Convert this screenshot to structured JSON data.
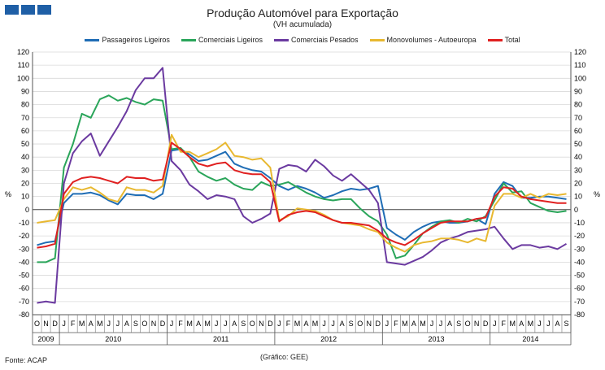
{
  "title": "Produção Automóvel para Exportação",
  "subtitle": "(VH acumulada)",
  "source": "Fonte: ACAP",
  "credit": "(Gráfico: GEE)",
  "chart_data": {
    "type": "line",
    "title": "Produção Automóvel para Exportação",
    "subtitle": "(VH acumulada)",
    "ylabel": "%",
    "ylabel_right": "%",
    "ylim": [
      -80,
      120
    ],
    "ytick_step": 10,
    "grid": "horizontal",
    "legend": "top",
    "categories": [
      "O",
      "N",
      "D",
      "J",
      "F",
      "M",
      "A",
      "M",
      "J",
      "J",
      "A",
      "S",
      "O",
      "N",
      "D",
      "J",
      "F",
      "M",
      "A",
      "M",
      "J",
      "J",
      "A",
      "S",
      "O",
      "N",
      "D",
      "J",
      "F",
      "M",
      "A",
      "M",
      "J",
      "J",
      "A",
      "S",
      "O",
      "N",
      "D",
      "J",
      "F",
      "M",
      "A",
      "M",
      "J",
      "J",
      "A",
      "S",
      "O",
      "N",
      "D",
      "J",
      "F",
      "M",
      "A",
      "M",
      "J",
      "J",
      "A",
      "S"
    ],
    "years": [
      {
        "label": "2009",
        "start": 0,
        "count": 3
      },
      {
        "label": "2010",
        "start": 3,
        "count": 12
      },
      {
        "label": "2011",
        "start": 15,
        "count": 12
      },
      {
        "label": "2012",
        "start": 27,
        "count": 12
      },
      {
        "label": "2013",
        "start": 39,
        "count": 12
      },
      {
        "label": "2014",
        "start": 51,
        "count": 9
      }
    ],
    "series": [
      {
        "name": "Passageiros Ligeiros",
        "color": "#1f6db5",
        "values": [
          -27,
          -25,
          -24,
          5,
          12,
          12,
          13,
          11,
          7,
          4,
          12,
          11,
          11,
          8,
          12,
          45,
          46,
          42,
          37,
          38,
          41,
          44,
          35,
          32,
          30,
          29,
          24,
          18,
          15,
          18,
          16,
          13,
          9,
          11,
          14,
          16,
          15,
          16,
          18,
          -14,
          -19,
          -23,
          -17,
          -13,
          -10,
          -9,
          -10,
          -10,
          -9,
          -7,
          -11,
          12,
          21,
          18,
          9,
          9,
          10,
          10,
          9,
          8
        ]
      },
      {
        "name": "Comerciais Ligeiros",
        "color": "#2aa55a",
        "values": [
          -40,
          -40,
          -37,
          32,
          50,
          73,
          70,
          84,
          87,
          83,
          85,
          82,
          80,
          84,
          83,
          46,
          47,
          40,
          29,
          25,
          22,
          24,
          19,
          16,
          15,
          21,
          18,
          19,
          21,
          17,
          13,
          10,
          8,
          7,
          8,
          8,
          1,
          -5,
          -9,
          -19,
          -37,
          -35,
          -27,
          -18,
          -13,
          -9,
          -8,
          -10,
          -7,
          -9,
          -5,
          7,
          20,
          13,
          14,
          5,
          2,
          -1,
          -2,
          -1
        ]
      },
      {
        "name": "Comerciais Pesados",
        "color": "#6b3aa0",
        "values": [
          -71,
          -70,
          -71,
          20,
          43,
          52,
          58,
          41,
          52,
          63,
          75,
          91,
          100,
          100,
          108,
          37,
          30,
          19,
          14,
          8,
          11,
          10,
          8,
          -5,
          -10,
          -7,
          -3,
          31,
          34,
          33,
          29,
          38,
          33,
          26,
          22,
          27,
          21,
          15,
          5,
          -40,
          -41,
          -42,
          -39,
          -36,
          -31,
          -25,
          -22,
          -20,
          -17,
          -16,
          -15,
          -13,
          -22,
          -30,
          -27,
          -27,
          -29,
          -28,
          -30,
          -26
        ]
      },
      {
        "name": "Monovolumes - Autoeuropa",
        "color": "#e8b830",
        "values": [
          -10,
          -9,
          -8,
          8,
          17,
          15,
          17,
          13,
          8,
          6,
          17,
          15,
          15,
          13,
          18,
          57,
          44,
          44,
          40,
          43,
          46,
          51,
          41,
          40,
          38,
          39,
          32,
          -8,
          -5,
          1,
          0,
          -1,
          -4,
          -8,
          -10,
          -11,
          -12,
          -15,
          -17,
          -25,
          -29,
          -32,
          -27,
          -25,
          -24,
          -22,
          -22,
          -23,
          -25,
          -22,
          -24,
          3,
          12,
          12,
          9,
          12,
          9,
          12,
          11,
          12
        ]
      },
      {
        "name": "Total",
        "color": "#e02020",
        "values": [
          -29,
          -28,
          -26,
          12,
          21,
          24,
          25,
          24,
          22,
          20,
          25,
          24,
          24,
          22,
          23,
          51,
          46,
          40,
          35,
          33,
          35,
          36,
          30,
          28,
          27,
          27,
          21,
          -9,
          -4,
          -2,
          -1,
          -2,
          -5,
          -8,
          -10,
          -10,
          -11,
          -12,
          -16,
          -22,
          -25,
          -27,
          -23,
          -18,
          -14,
          -10,
          -9,
          -9,
          -9,
          -7,
          -6,
          10,
          17,
          16,
          10,
          8,
          7,
          6,
          5,
          5
        ]
      }
    ]
  }
}
